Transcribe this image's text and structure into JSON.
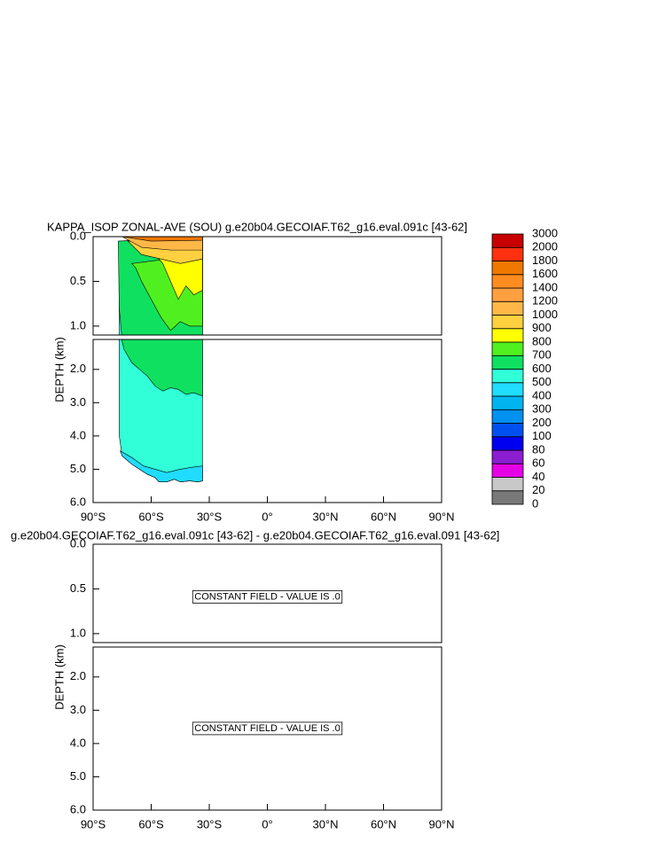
{
  "chart_data": [
    {
      "type": "contour",
      "title": "KAPPA_ISOP ZONAL-AVE (SOU) g.e20b04.GECOIAF.T62_g16.eval.091c [43-62]",
      "ylabel": "DEPTH (km)",
      "xlim": [
        -90,
        90
      ],
      "xticks": [
        {
          "value": -90,
          "label": "90°S"
        },
        {
          "value": -60,
          "label": "60°S"
        },
        {
          "value": -30,
          "label": "30°S"
        },
        {
          "value": 0,
          "label": "0°"
        },
        {
          "value": 30,
          "label": "30°N"
        },
        {
          "value": 60,
          "label": "60°N"
        },
        {
          "value": 90,
          "label": "90°N"
        }
      ],
      "ylim": [
        0,
        6
      ],
      "ybreak": 1.1,
      "yticks": [
        {
          "value": 0,
          "label": "0.0"
        },
        0.5,
        {
          "value": 1,
          "label": "1.0"
        },
        {
          "value": 2,
          "label": "2.0"
        },
        {
          "value": 3,
          "label": "3.0"
        },
        {
          "value": 4,
          "label": "4.0"
        },
        {
          "value": 5,
          "label": "5.0"
        },
        {
          "value": 6,
          "label": "6.0"
        }
      ],
      "levels": [
        0,
        20,
        40,
        60,
        80,
        100,
        200,
        300,
        400,
        500,
        600,
        700,
        800,
        900,
        1000,
        1200,
        1400,
        1600,
        1800,
        2000,
        3000
      ],
      "colors": [
        "#787878",
        "#c8c8c8",
        "#e600e6",
        "#8c1ed2",
        "#0000f0",
        "#0050f0",
        "#0090f0",
        "#00b4f0",
        "#20dcff",
        "#30ffd8",
        "#10e060",
        "#50f020",
        "#ffff00",
        "#ffd040",
        "#ffb848",
        "#ffa040",
        "#ff8c20",
        "#f07800",
        "#ff3010",
        "#c80000"
      ],
      "regions": [
        {
          "level": 500,
          "lat": [
            -76.5,
            -33.5,
            -33.5,
            -36,
            -40,
            -45,
            -48,
            -52,
            -56,
            -58,
            -62,
            -66,
            -70,
            -75,
            -76.5
          ],
          "depth": [
            0.05,
            0,
            5.35,
            5.38,
            5.35,
            5.38,
            5.3,
            5.38,
            5.38,
            5.25,
            5.15,
            5.0,
            4.85,
            4.6,
            4.0
          ]
        },
        {
          "level": 400,
          "lat": [
            -76,
            -70,
            -64,
            -58,
            -52,
            -45,
            -40,
            -33.5,
            -33.5,
            -36,
            -40,
            -45,
            -48,
            -52,
            -56,
            -58,
            -62,
            -66,
            -70,
            -75
          ],
          "depth": [
            4.45,
            4.65,
            4.9,
            5.0,
            5.1,
            5.0,
            4.95,
            4.9,
            5.35,
            5.38,
            5.35,
            5.38,
            5.3,
            5.38,
            5.38,
            5.25,
            5.15,
            5.0,
            4.85,
            4.6
          ]
        },
        {
          "level": 600,
          "lat": [
            -77,
            -33.5,
            -33.5,
            -38,
            -42,
            -46,
            -50,
            -54,
            -58,
            -62,
            -66,
            -70,
            -74,
            -76.5
          ],
          "depth": [
            0.05,
            0,
            2.8,
            2.7,
            2.75,
            2.6,
            2.55,
            2.65,
            2.5,
            2.2,
            2.0,
            1.8,
            1.4,
            0.8
          ]
        },
        {
          "level": 700,
          "lat": [
            -70,
            -33.5,
            -33.5,
            -40,
            -45,
            -50,
            -55,
            -60,
            -65,
            -68
          ],
          "depth": [
            0.3,
            0.2,
            1.0,
            1.0,
            0.95,
            1.05,
            0.9,
            0.7,
            0.5,
            0.35
          ]
        },
        {
          "level": 800,
          "lat": [
            -58,
            -33.5,
            -33.5,
            -38,
            -42,
            -46,
            -50,
            -54
          ],
          "depth": [
            0.2,
            0.15,
            0.6,
            0.65,
            0.55,
            0.7,
            0.5,
            0.3
          ]
        },
        {
          "level": 900,
          "lat": [
            -72,
            -33.5,
            -33.5,
            -45,
            -55,
            -65
          ],
          "depth": [
            0.05,
            0.05,
            0.25,
            0.3,
            0.25,
            0.2
          ]
        },
        {
          "level": 1000,
          "lat": [
            -75,
            -33.5,
            -33.5,
            -50,
            -65
          ],
          "depth": [
            0,
            0,
            0.15,
            0.15,
            0.12
          ]
        },
        {
          "level": 1600,
          "lat": [
            -75,
            -33.5,
            -33.5,
            -60
          ],
          "depth": [
            0,
            0,
            0.04,
            0.05
          ]
        }
      ]
    },
    {
      "type": "contour",
      "title": "g.e20b04.GECOIAF.T62_g16.eval.091c [43-62] - g.e20b04.GECOIAF.T62_g16.eval.091 [43-62]",
      "ylabel": "DEPTH (km)",
      "xlim": [
        -90,
        90
      ],
      "xticks": [
        {
          "value": -90,
          "label": "90°S"
        },
        {
          "value": -60,
          "label": "60°S"
        },
        {
          "value": -30,
          "label": "30°S"
        },
        {
          "value": 0,
          "label": "0°"
        },
        {
          "value": 30,
          "label": "30°N"
        },
        {
          "value": 60,
          "label": "60°N"
        },
        {
          "value": 90,
          "label": "90°N"
        }
      ],
      "ylim": [
        0,
        6
      ],
      "ybreak": 1.1,
      "yticks": [
        {
          "value": 0,
          "label": "0.0"
        },
        0.5,
        {
          "value": 1,
          "label": "1.0"
        },
        {
          "value": 2,
          "label": "2.0"
        },
        {
          "value": 3,
          "label": "3.0"
        },
        {
          "value": 4,
          "label": "4.0"
        },
        {
          "value": 5,
          "label": "5.0"
        },
        {
          "value": 6,
          "label": "6.0"
        }
      ],
      "annotations": [
        "CONSTANT FIELD - VALUE IS .0",
        "CONSTANT FIELD - VALUE IS .0"
      ]
    }
  ]
}
